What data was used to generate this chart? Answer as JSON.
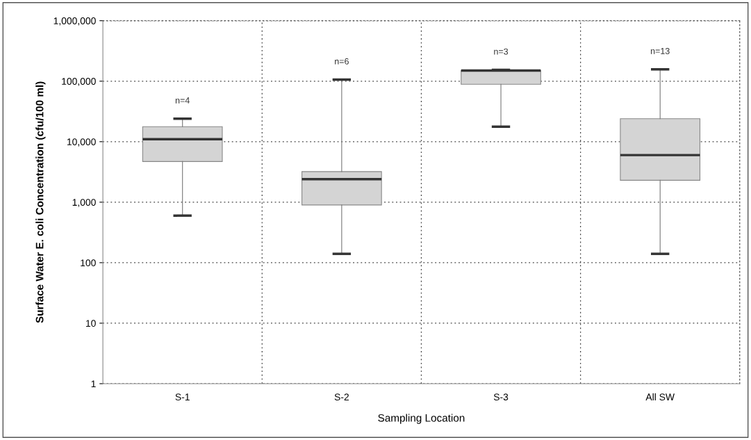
{
  "chart_data": {
    "type": "box",
    "xlabel": "Sampling Location",
    "ylabel": "Surface Water E. coli Concentration (cfu/100 ml)",
    "categories": [
      "S-1",
      "S-2",
      "S-3",
      "All SW"
    ],
    "boxes": [
      {
        "low": 600,
        "q1": 4700,
        "median": 11000,
        "q3": 17700,
        "high": 24000
      },
      {
        "low": 140,
        "q1": 900,
        "median": 2400,
        "q3": 3200,
        "high": 106000
      },
      {
        "low": 17700,
        "q1": 89000,
        "median": 150000,
        "q3": 150000,
        "high": 154000
      },
      {
        "low": 140,
        "q1": 2300,
        "median": 6000,
        "q3": 24000,
        "high": 157000
      }
    ],
    "color": "#d4d4d4",
    "log": true,
    "ylim": [
      1,
      1000000
    ],
    "yticks": [
      1,
      10,
      100,
      {
        "value": 1000,
        "label": "1,000"
      },
      {
        "value": 10000,
        "label": "10,000"
      },
      {
        "value": 100000,
        "label": "100,000"
      },
      {
        "value": 1000000,
        "label": "1,000,000"
      }
    ],
    "grid": true,
    "annotations": [
      "n=4",
      "n=6",
      "n=3",
      "n=13"
    ]
  }
}
